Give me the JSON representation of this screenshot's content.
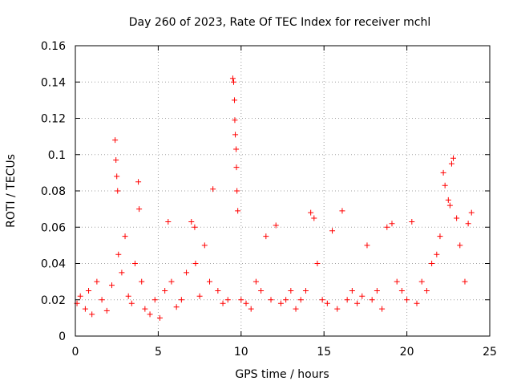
{
  "chart_data": {
    "type": "scatter",
    "title": "Day 260 of 2023, Rate Of TEC Index for receiver mchl",
    "xlabel": "GPS time / hours",
    "ylabel": "ROTI / TECUs",
    "xlim": [
      0,
      25
    ],
    "ylim": [
      0,
      0.16
    ],
    "x_ticks": [
      0,
      5,
      10,
      15,
      20,
      25
    ],
    "x_tick_labels": [
      "0",
      "5",
      "10",
      "15",
      "20",
      "25"
    ],
    "y_ticks": [
      0,
      0.02,
      0.04,
      0.06,
      0.08,
      0.1,
      0.12,
      0.14,
      0.16
    ],
    "y_tick_labels": [
      "0",
      "0.02",
      "0.04",
      "0.06",
      "0.08",
      "0.1",
      "0.12",
      "0.14",
      "0.16"
    ],
    "grid": true,
    "marker": "+",
    "marker_color": "#ff0000",
    "series": [
      {
        "name": "ROTI",
        "x": [
          0.1,
          0.3,
          0.6,
          0.8,
          1.0,
          1.3,
          1.6,
          1.9,
          2.2,
          2.4,
          2.45,
          2.5,
          2.55,
          2.6,
          2.8,
          3.0,
          3.2,
          3.4,
          3.6,
          3.8,
          3.85,
          4.0,
          4.2,
          4.5,
          4.8,
          5.1,
          5.4,
          5.6,
          5.8,
          6.1,
          6.4,
          6.7,
          7.0,
          7.2,
          7.25,
          7.5,
          7.8,
          8.1,
          8.3,
          8.6,
          8.9,
          9.2,
          9.5,
          9.55,
          9.6,
          9.62,
          9.65,
          9.7,
          9.72,
          9.75,
          9.8,
          10.0,
          10.3,
          10.6,
          10.9,
          11.2,
          11.5,
          11.8,
          12.1,
          12.4,
          12.7,
          13.0,
          13.3,
          13.6,
          13.9,
          14.2,
          14.4,
          14.6,
          14.9,
          15.2,
          15.5,
          15.8,
          16.1,
          16.4,
          16.7,
          17.0,
          17.3,
          17.6,
          17.9,
          18.2,
          18.5,
          18.8,
          19.1,
          19.4,
          19.7,
          20.0,
          20.3,
          20.6,
          20.9,
          21.2,
          21.5,
          21.8,
          22.0,
          22.2,
          22.3,
          22.5,
          22.6,
          22.7,
          22.8,
          23.0,
          23.2,
          23.5,
          23.7,
          23.9
        ],
        "y": [
          0.018,
          0.022,
          0.015,
          0.025,
          0.012,
          0.03,
          0.02,
          0.014,
          0.028,
          0.108,
          0.097,
          0.088,
          0.08,
          0.045,
          0.035,
          0.055,
          0.022,
          0.018,
          0.04,
          0.085,
          0.07,
          0.03,
          0.015,
          0.012,
          0.02,
          0.01,
          0.025,
          0.063,
          0.03,
          0.016,
          0.02,
          0.035,
          0.063,
          0.06,
          0.04,
          0.022,
          0.05,
          0.03,
          0.081,
          0.025,
          0.018,
          0.02,
          0.142,
          0.14,
          0.13,
          0.119,
          0.111,
          0.103,
          0.093,
          0.08,
          0.069,
          0.02,
          0.018,
          0.015,
          0.03,
          0.025,
          0.055,
          0.02,
          0.061,
          0.018,
          0.02,
          0.025,
          0.015,
          0.02,
          0.025,
          0.068,
          0.065,
          0.04,
          0.02,
          0.018,
          0.058,
          0.015,
          0.069,
          0.02,
          0.025,
          0.018,
          0.022,
          0.05,
          0.02,
          0.025,
          0.015,
          0.06,
          0.062,
          0.03,
          0.025,
          0.02,
          0.063,
          0.018,
          0.03,
          0.025,
          0.04,
          0.045,
          0.055,
          0.09,
          0.083,
          0.075,
          0.072,
          0.095,
          0.098,
          0.065,
          0.05,
          0.03,
          0.062,
          0.068
        ]
      }
    ]
  }
}
